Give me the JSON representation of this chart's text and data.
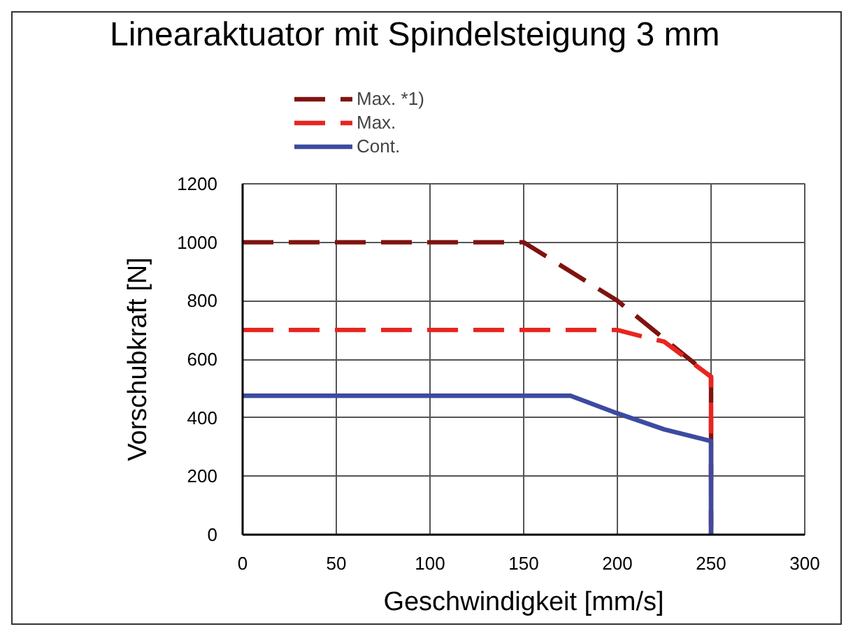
{
  "chart_data": {
    "type": "line",
    "title": "Linearaktuator mit Spindelsteigung 3 mm",
    "xlabel": "Geschwindigkeit [mm/s]",
    "ylabel": "Vorschubkraft [N]",
    "xlim": [
      0,
      300
    ],
    "ylim": [
      0,
      1200
    ],
    "xticks": [
      0,
      50,
      100,
      150,
      200,
      250,
      300
    ],
    "yticks": [
      0,
      200,
      400,
      600,
      800,
      1000,
      1200
    ],
    "grid": true,
    "legend": "top",
    "series": [
      {
        "name": "Max. *1)",
        "color": "#7f1310",
        "line_style": "dashed",
        "x": [
          0,
          150,
          200,
          225,
          250,
          250
        ],
        "values": [
          1000,
          1000,
          800,
          670,
          540,
          0
        ]
      },
      {
        "name": "Max.",
        "color": "#e8251f",
        "line_style": "dashed",
        "x": [
          0,
          200,
          215,
          225,
          250,
          250
        ],
        "values": [
          700,
          700,
          675,
          660,
          540,
          0
        ]
      },
      {
        "name": "Cont.",
        "color": "#3c4ba0",
        "line_style": "solid",
        "x": [
          0,
          175,
          200,
          225,
          250,
          250
        ],
        "values": [
          475,
          475,
          415,
          360,
          320,
          0
        ]
      }
    ]
  }
}
